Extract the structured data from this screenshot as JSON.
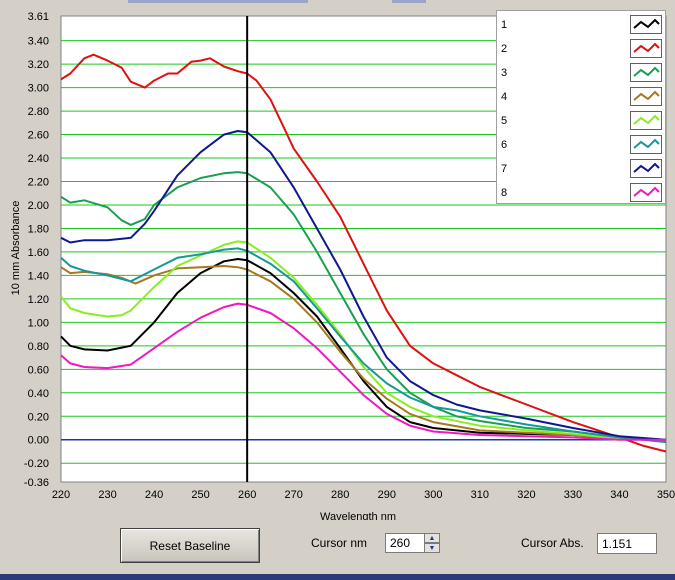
{
  "chart_data": {
    "type": "line",
    "xlabel": "Wavelength nm",
    "ylabel": "10 mm Absorbance",
    "xlim": [
      220,
      350
    ],
    "ylim": [
      -0.36,
      3.61
    ],
    "x_ticks": [
      "220",
      "230",
      "240",
      "250",
      "260",
      "270",
      "280",
      "290",
      "300",
      "310",
      "320",
      "330",
      "340",
      "350"
    ],
    "y_ticks": [
      "3.61",
      "3.40",
      "3.20",
      "3.00",
      "2.80",
      "2.60",
      "2.40",
      "2.20",
      "2.00",
      "1.80",
      "1.60",
      "1.40",
      "1.20",
      "1.00",
      "0.80",
      "0.60",
      "0.40",
      "0.20",
      "0.00",
      "-0.20",
      "-0.36"
    ],
    "grid": true,
    "legend_position": "top-right",
    "cursor_x": 260,
    "series": [
      {
        "name": "1",
        "color": "#000000",
        "points": [
          [
            220,
            0.88
          ],
          [
            222,
            0.8
          ],
          [
            225,
            0.77
          ],
          [
            230,
            0.76
          ],
          [
            235,
            0.8
          ],
          [
            240,
            1.0
          ],
          [
            245,
            1.25
          ],
          [
            250,
            1.42
          ],
          [
            255,
            1.52
          ],
          [
            258,
            1.54
          ],
          [
            260,
            1.53
          ],
          [
            265,
            1.42
          ],
          [
            270,
            1.25
          ],
          [
            275,
            1.05
          ],
          [
            280,
            0.78
          ],
          [
            285,
            0.5
          ],
          [
            290,
            0.28
          ],
          [
            295,
            0.15
          ],
          [
            300,
            0.1
          ],
          [
            310,
            0.06
          ],
          [
            320,
            0.05
          ],
          [
            330,
            0.04
          ],
          [
            340,
            0.01
          ],
          [
            350,
            0.0
          ]
        ]
      },
      {
        "name": "2",
        "color": "#e01010",
        "points": [
          [
            220,
            3.07
          ],
          [
            222,
            3.12
          ],
          [
            225,
            3.25
          ],
          [
            227,
            3.28
          ],
          [
            230,
            3.23
          ],
          [
            233,
            3.17
          ],
          [
            235,
            3.05
          ],
          [
            238,
            3.0
          ],
          [
            240,
            3.06
          ],
          [
            243,
            3.12
          ],
          [
            245,
            3.12
          ],
          [
            248,
            3.22
          ],
          [
            250,
            3.23
          ],
          [
            252,
            3.25
          ],
          [
            255,
            3.18
          ],
          [
            258,
            3.14
          ],
          [
            260,
            3.12
          ],
          [
            262,
            3.06
          ],
          [
            265,
            2.9
          ],
          [
            268,
            2.65
          ],
          [
            270,
            2.48
          ],
          [
            275,
            2.2
          ],
          [
            280,
            1.9
          ],
          [
            285,
            1.5
          ],
          [
            290,
            1.1
          ],
          [
            295,
            0.8
          ],
          [
            300,
            0.65
          ],
          [
            305,
            0.55
          ],
          [
            310,
            0.45
          ],
          [
            320,
            0.3
          ],
          [
            330,
            0.15
          ],
          [
            340,
            0.02
          ],
          [
            345,
            -0.05
          ],
          [
            350,
            -0.1
          ]
        ]
      },
      {
        "name": "3",
        "color": "#18a050",
        "points": [
          [
            220,
            2.07
          ],
          [
            222,
            2.02
          ],
          [
            225,
            2.04
          ],
          [
            230,
            1.98
          ],
          [
            233,
            1.87
          ],
          [
            235,
            1.83
          ],
          [
            238,
            1.88
          ],
          [
            240,
            2.0
          ],
          [
            245,
            2.15
          ],
          [
            250,
            2.23
          ],
          [
            255,
            2.27
          ],
          [
            258,
            2.28
          ],
          [
            260,
            2.27
          ],
          [
            265,
            2.15
          ],
          [
            270,
            1.92
          ],
          [
            275,
            1.6
          ],
          [
            280,
            1.25
          ],
          [
            285,
            0.9
          ],
          [
            290,
            0.6
          ],
          [
            295,
            0.4
          ],
          [
            300,
            0.28
          ],
          [
            305,
            0.2
          ],
          [
            310,
            0.16
          ],
          [
            320,
            0.1
          ],
          [
            330,
            0.07
          ],
          [
            340,
            0.02
          ],
          [
            350,
            0.0
          ]
        ]
      },
      {
        "name": "4",
        "color": "#a87820",
        "points": [
          [
            220,
            1.47
          ],
          [
            222,
            1.42
          ],
          [
            225,
            1.43
          ],
          [
            230,
            1.41
          ],
          [
            233,
            1.38
          ],
          [
            236,
            1.33
          ],
          [
            240,
            1.4
          ],
          [
            245,
            1.46
          ],
          [
            250,
            1.47
          ],
          [
            255,
            1.48
          ],
          [
            258,
            1.47
          ],
          [
            260,
            1.45
          ],
          [
            265,
            1.35
          ],
          [
            270,
            1.2
          ],
          [
            275,
            1.0
          ],
          [
            280,
            0.75
          ],
          [
            285,
            0.52
          ],
          [
            290,
            0.35
          ],
          [
            295,
            0.22
          ],
          [
            300,
            0.15
          ],
          [
            310,
            0.08
          ],
          [
            320,
            0.06
          ],
          [
            330,
            0.04
          ],
          [
            340,
            0.01
          ],
          [
            350,
            0.0
          ]
        ]
      },
      {
        "name": "5",
        "color": "#88ee20",
        "points": [
          [
            220,
            1.22
          ],
          [
            222,
            1.12
          ],
          [
            225,
            1.08
          ],
          [
            230,
            1.05
          ],
          [
            233,
            1.06
          ],
          [
            235,
            1.1
          ],
          [
            240,
            1.3
          ],
          [
            245,
            1.48
          ],
          [
            250,
            1.57
          ],
          [
            255,
            1.66
          ],
          [
            258,
            1.69
          ],
          [
            260,
            1.68
          ],
          [
            265,
            1.55
          ],
          [
            270,
            1.38
          ],
          [
            275,
            1.15
          ],
          [
            280,
            0.9
          ],
          [
            285,
            0.62
          ],
          [
            290,
            0.4
          ],
          [
            295,
            0.28
          ],
          [
            300,
            0.2
          ],
          [
            310,
            0.12
          ],
          [
            320,
            0.08
          ],
          [
            330,
            0.05
          ],
          [
            340,
            0.01
          ],
          [
            350,
            0.0
          ]
        ]
      },
      {
        "name": "6",
        "color": "#189898",
        "points": [
          [
            220,
            1.55
          ],
          [
            222,
            1.48
          ],
          [
            225,
            1.44
          ],
          [
            230,
            1.4
          ],
          [
            235,
            1.35
          ],
          [
            240,
            1.45
          ],
          [
            245,
            1.55
          ],
          [
            250,
            1.58
          ],
          [
            255,
            1.62
          ],
          [
            258,
            1.63
          ],
          [
            260,
            1.61
          ],
          [
            265,
            1.5
          ],
          [
            270,
            1.35
          ],
          [
            275,
            1.12
          ],
          [
            280,
            0.88
          ],
          [
            285,
            0.65
          ],
          [
            290,
            0.48
          ],
          [
            295,
            0.36
          ],
          [
            300,
            0.28
          ],
          [
            305,
            0.25
          ],
          [
            310,
            0.2
          ],
          [
            320,
            0.13
          ],
          [
            330,
            0.07
          ],
          [
            340,
            0.02
          ],
          [
            350,
            -0.02
          ]
        ]
      },
      {
        "name": "7",
        "color": "#101890",
        "points": [
          [
            220,
            1.72
          ],
          [
            222,
            1.68
          ],
          [
            225,
            1.7
          ],
          [
            230,
            1.7
          ],
          [
            235,
            1.72
          ],
          [
            238,
            1.84
          ],
          [
            240,
            1.95
          ],
          [
            245,
            2.25
          ],
          [
            250,
            2.45
          ],
          [
            255,
            2.6
          ],
          [
            258,
            2.63
          ],
          [
            260,
            2.62
          ],
          [
            265,
            2.45
          ],
          [
            270,
            2.15
          ],
          [
            275,
            1.8
          ],
          [
            280,
            1.45
          ],
          [
            285,
            1.05
          ],
          [
            290,
            0.7
          ],
          [
            295,
            0.5
          ],
          [
            300,
            0.38
          ],
          [
            305,
            0.3
          ],
          [
            310,
            0.25
          ],
          [
            320,
            0.18
          ],
          [
            330,
            0.1
          ],
          [
            340,
            0.03
          ],
          [
            350,
            0.0
          ]
        ]
      },
      {
        "name": "8",
        "color": "#f018c0",
        "points": [
          [
            220,
            0.72
          ],
          [
            222,
            0.65
          ],
          [
            225,
            0.62
          ],
          [
            230,
            0.61
          ],
          [
            235,
            0.64
          ],
          [
            240,
            0.78
          ],
          [
            245,
            0.92
          ],
          [
            250,
            1.04
          ],
          [
            255,
            1.13
          ],
          [
            258,
            1.16
          ],
          [
            260,
            1.15
          ],
          [
            265,
            1.08
          ],
          [
            270,
            0.95
          ],
          [
            275,
            0.78
          ],
          [
            280,
            0.58
          ],
          [
            285,
            0.38
          ],
          [
            290,
            0.22
          ],
          [
            295,
            0.12
          ],
          [
            300,
            0.07
          ],
          [
            310,
            0.04
          ],
          [
            320,
            0.03
          ],
          [
            330,
            0.02
          ],
          [
            340,
            0.0
          ],
          [
            350,
            0.0
          ]
        ]
      }
    ]
  },
  "legend": {
    "items": [
      "1",
      "2",
      "3",
      "4",
      "5",
      "6",
      "7",
      "8"
    ]
  },
  "controls": {
    "reset_label": "Reset Baseline",
    "cursor_nm_label": "Cursor nm",
    "cursor_nm_value": "260",
    "cursor_abs_label": "Cursor Abs.",
    "cursor_abs_value": "1.151"
  },
  "colors": {
    "plot_bg": "#ffffff",
    "grid": "#1ec81e",
    "baseline": "#1a3aa0",
    "cursor": "#000000",
    "window_bg": "#d4d0c8"
  }
}
